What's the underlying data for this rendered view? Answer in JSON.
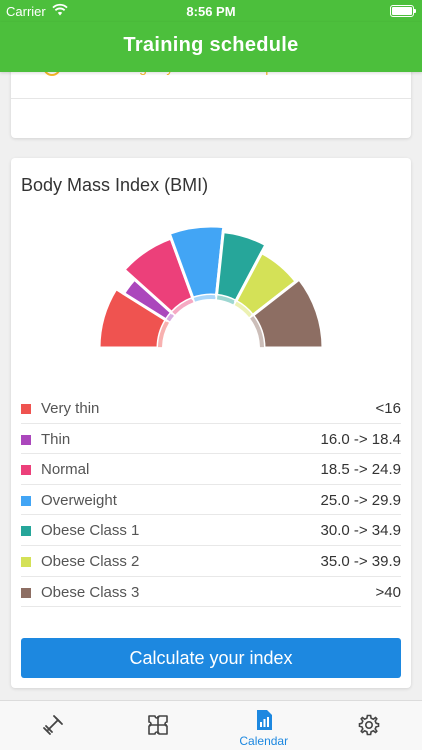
{
  "status_bar": {
    "carrier": "Carrier",
    "time": "8:56 PM"
  },
  "nav": {
    "title": "Training schedule"
  },
  "top_card": {
    "completed_text": "The training day has been completed"
  },
  "bmi": {
    "title": "Body Mass Index (BMI)",
    "categories": [
      {
        "name": "Very thin",
        "range": "<16",
        "color": "#ef5350"
      },
      {
        "name": "Thin",
        "range": "16.0 -> 18.4",
        "color": "#ab47bc"
      },
      {
        "name": "Normal",
        "range": "18.5 -> 24.9",
        "color": "#ec407a"
      },
      {
        "name": "Overweight",
        "range": "25.0 -> 29.9",
        "color": "#42a5f5"
      },
      {
        "name": "Obese Class 1",
        "range": "30.0 -> 34.9",
        "color": "#26a69a"
      },
      {
        "name": "Obese Class 2",
        "range": "35.0 -> 39.9",
        "color": "#d4e157"
      },
      {
        "name": "Obese Class 3",
        "range": ">40",
        "color": "#8d6e63"
      }
    ],
    "button_label": "Calculate your index"
  },
  "tabs": [
    {
      "icon": "dumbbell-icon",
      "label": ""
    },
    {
      "icon": "puzzle-icon",
      "label": ""
    },
    {
      "icon": "calendar-icon",
      "label": "Calendar",
      "active": true
    },
    {
      "icon": "gear-icon",
      "label": ""
    }
  ],
  "colors": {
    "brand_green": "#4cbf3c",
    "accent_blue": "#1d88e0",
    "completed_amber": "#f5b829"
  }
}
